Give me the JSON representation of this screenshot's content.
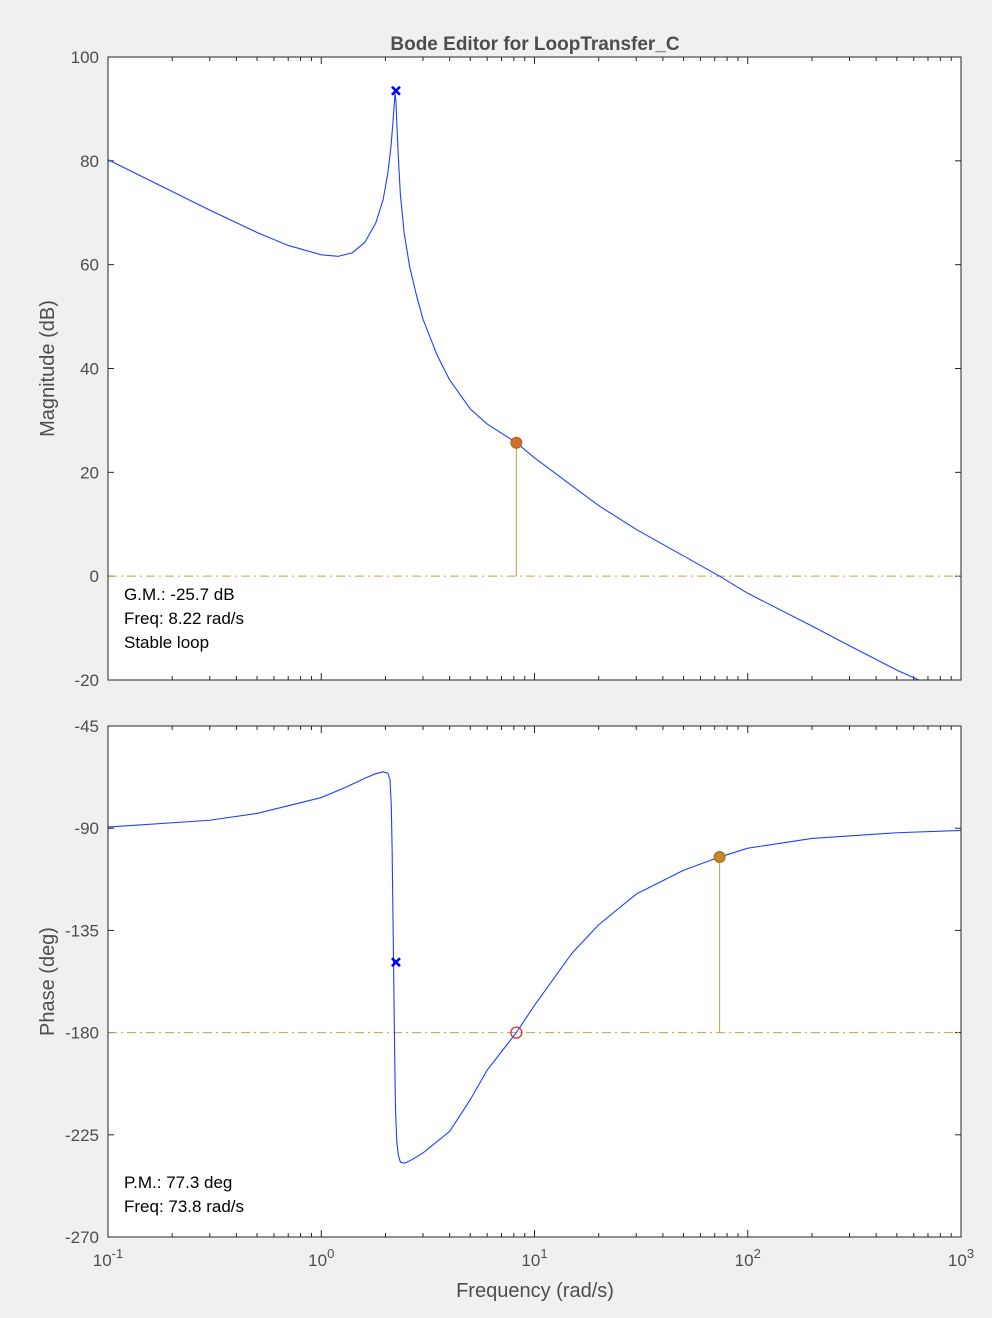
{
  "chart_data": {
    "type": "line",
    "title": "Bode Editor for LoopTransfer_C",
    "xlabel": "Frequency (rad/s)",
    "xscale": "log",
    "xlim": [
      0.1,
      1000
    ],
    "xticks": [
      {
        "value": 0.1,
        "base": "10",
        "exp": "-1"
      },
      {
        "value": 1,
        "base": "10",
        "exp": "0"
      },
      {
        "value": 10,
        "base": "10",
        "exp": "1"
      },
      {
        "value": 100,
        "base": "10",
        "exp": "2"
      },
      {
        "value": 1000,
        "base": "10",
        "exp": "3"
      }
    ],
    "colors": {
      "response": "#1f3fff",
      "margin": "#c8a040",
      "marker": "#c8862a",
      "pole": "#0000ff",
      "crossing": "#e03030"
    },
    "magnitude": {
      "ylabel": "Magnitude (dB)",
      "ylim": [
        -20,
        100
      ],
      "yticks": [
        100,
        80,
        60,
        40,
        20,
        0,
        -20
      ],
      "series": {
        "x": [
          0.1,
          0.2,
          0.3,
          0.5,
          0.7,
          1.0,
          1.2,
          1.4,
          1.6,
          1.8,
          1.95,
          2.05,
          2.12,
          2.17,
          2.2,
          2.22,
          2.24,
          2.26,
          2.3,
          2.35,
          2.45,
          2.6,
          2.8,
          3.0,
          3.5,
          4.0,
          5.0,
          6.0,
          8.22,
          10,
          15,
          20,
          30,
          50,
          73.8,
          100,
          200,
          300,
          500,
          700
        ],
        "y": [
          80.2,
          74.1,
          70.5,
          66.2,
          63.7,
          61.9,
          61.6,
          62.3,
          64.3,
          68.0,
          72.5,
          77.5,
          82.5,
          87.5,
          91.0,
          93.0,
          91.5,
          87.5,
          80.5,
          73.5,
          66.0,
          59.5,
          54.0,
          49.5,
          42.5,
          37.8,
          32.2,
          29.3,
          25.7,
          22.8,
          17.4,
          13.6,
          9.0,
          3.9,
          0.0,
          -3.3,
          -9.6,
          -13.4,
          -18.1,
          -20.8
        ]
      },
      "pole_marker": {
        "x": 2.24,
        "y": 93.5
      },
      "gain_margin_marker": {
        "x": 8.22,
        "y": 25.7
      },
      "reference_line": 0,
      "annotation": [
        "G.M.: -25.7 dB",
        "Freq: 8.22 rad/s",
        "Stable loop"
      ]
    },
    "phase": {
      "ylabel": "Phase (deg)",
      "ylim": [
        -270,
        -45
      ],
      "yticks": [
        -45,
        -90,
        -135,
        -180,
        -225,
        -270
      ],
      "series": {
        "x": [
          0.1,
          0.3,
          0.5,
          1.0,
          1.3,
          1.6,
          1.8,
          1.95,
          2.05,
          2.1,
          2.13,
          2.15,
          2.17,
          2.19,
          2.21,
          2.23,
          2.26,
          2.3,
          2.35,
          2.45,
          2.6,
          3.0,
          4.0,
          5.0,
          6.0,
          8.22,
          10,
          15,
          20,
          30,
          50,
          73.8,
          100,
          200,
          500,
          1000
        ],
        "y": [
          -89.5,
          -86.5,
          -83.5,
          -76.5,
          -72.0,
          -68.0,
          -66.0,
          -65.2,
          -65.8,
          -68.5,
          -80.0,
          -100.0,
          -130.0,
          -160.0,
          -190.0,
          -214.0,
          -228.0,
          -234.0,
          -237.0,
          -237.5,
          -236.5,
          -233.0,
          -223.5,
          -209.5,
          -196.5,
          -180.0,
          -168.0,
          -145.0,
          -132.5,
          -119.0,
          -108.5,
          -102.7,
          -98.8,
          -94.5,
          -92.0,
          -91.0
        ]
      },
      "pole_marker": {
        "x": 2.24,
        "y": -149.0
      },
      "phase_margin_marker": {
        "x": 73.8,
        "y": -102.7
      },
      "crossing_marker": {
        "x": 8.22,
        "y": -180
      },
      "reference_line": -180,
      "annotation": [
        "P.M.: 77.3 deg",
        "Freq: 73.8 rad/s"
      ]
    }
  }
}
